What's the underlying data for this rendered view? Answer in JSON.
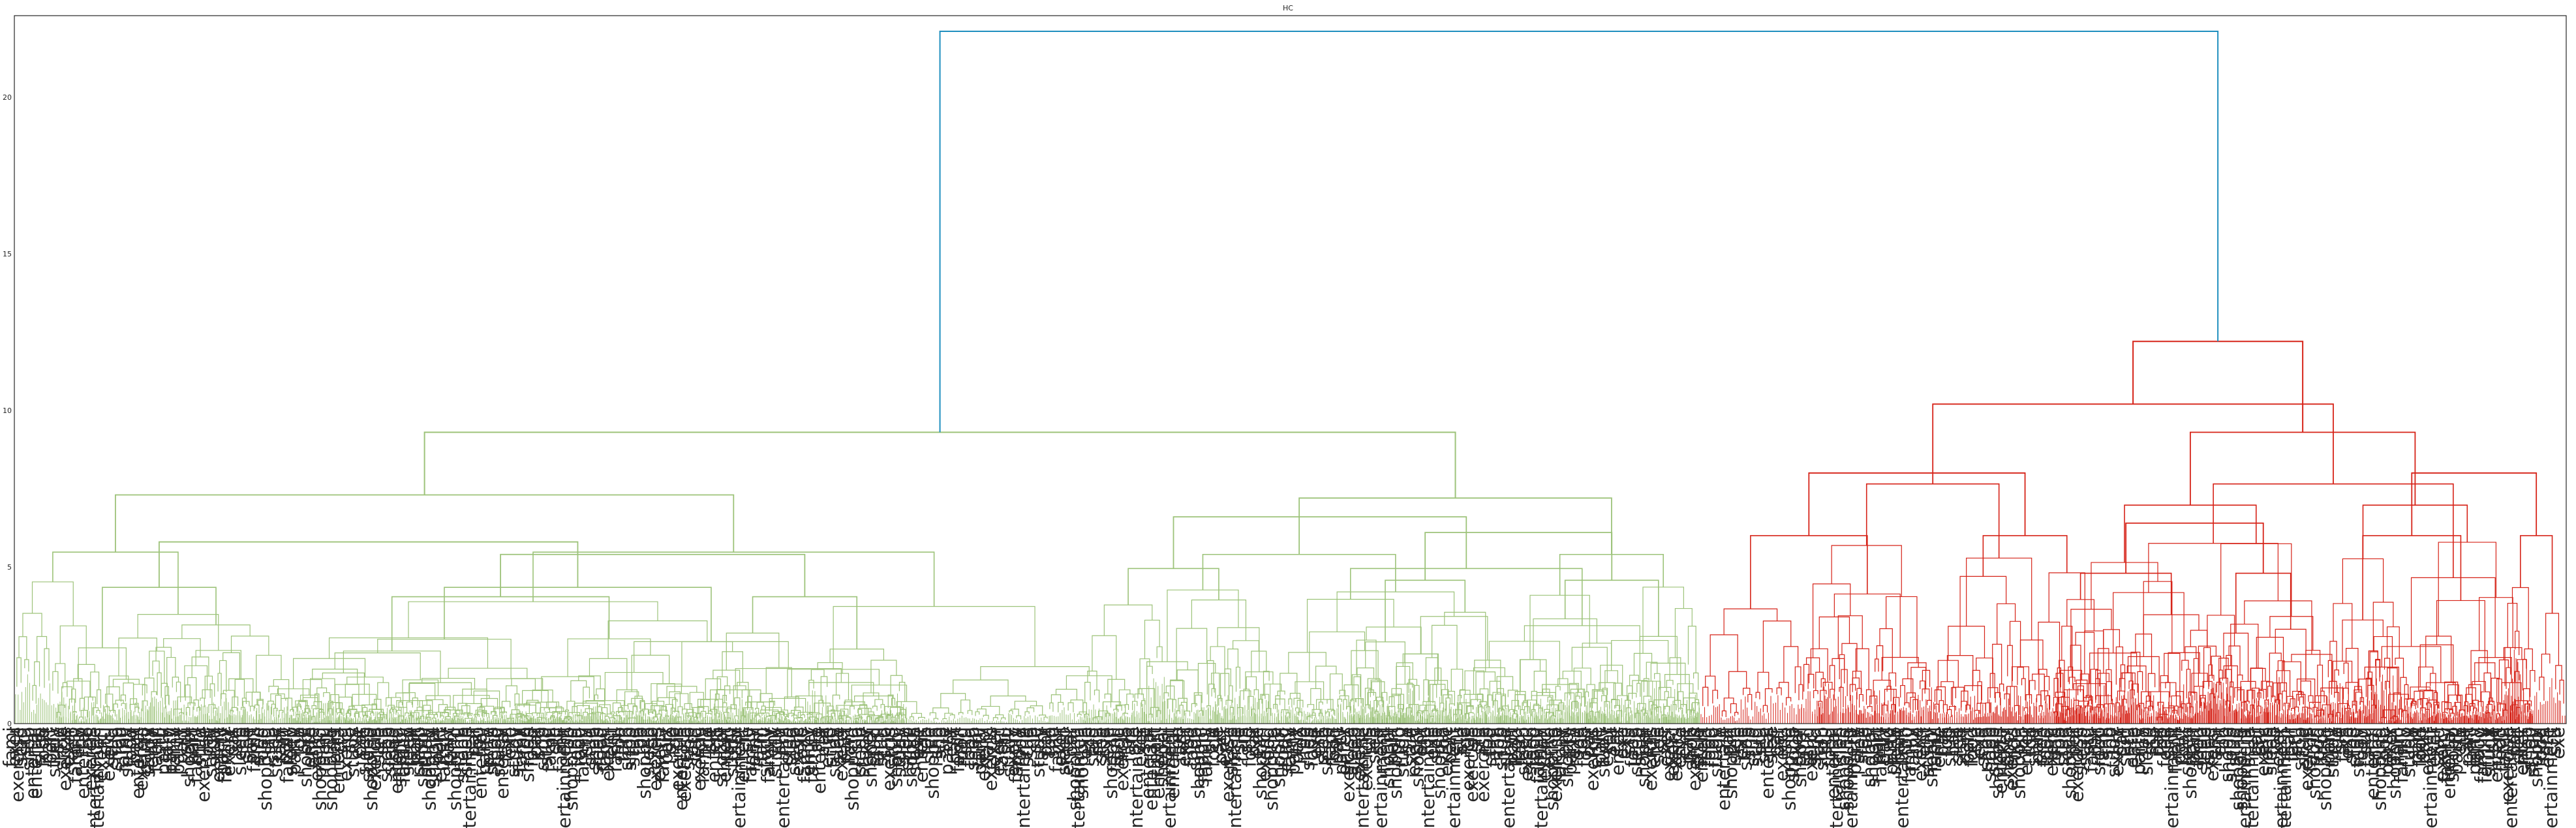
{
  "chart_data": {
    "type": "dendrogram",
    "title": "HC",
    "xlabel": "",
    "ylabel": "",
    "ylim": [
      0,
      22.6
    ],
    "y_ticks": [
      0,
      5,
      10,
      15,
      20
    ],
    "grid": false,
    "colors": {
      "root_link": "#1f8fbf",
      "cluster_green": "#9dc37a",
      "cluster_red": "#d62318",
      "leaf_text": "#262626",
      "axes": "#262626"
    },
    "clusters": [
      {
        "color": "cluster_green",
        "leaf_span": [
          0.0,
          0.6606
        ],
        "merge_height": 9.3,
        "sub_merges": [
          {
            "height": 7.3,
            "children": [
              [
                0.0,
                0.0985
              ],
              [
                0.0985,
                0.4375
              ]
            ]
          },
          {
            "height": 7.2,
            "children": [
              [
                0.4375,
                0.5865
              ],
              [
                0.5865,
                0.6606
              ]
            ]
          },
          {
            "height": 5.8,
            "children": [
              [
                0.016,
                0.11
              ],
              [
                0.11,
                0.35
              ]
            ]
          },
          {
            "height": 5.4,
            "children": [
              [
                0.11,
                0.2665
              ],
              [
                0.2665,
                0.35
              ]
            ]
          },
          {
            "height": 6.6,
            "children": [
              [
                0.418,
                0.4925
              ],
              [
                0.4925,
                0.6606
              ]
            ]
          },
          {
            "height": 6.1,
            "children": [
              [
                0.523,
                0.585
              ],
              [
                0.585,
                0.6606
              ]
            ]
          }
        ]
      },
      {
        "color": "cluster_red",
        "leaf_span": [
          0.6606,
          1.0
        ],
        "merge_height": 12.2,
        "sub_merges": [
          {
            "height": 10.2,
            "children": [
              [
                0.7,
                0.7985
              ],
              [
                0.7985,
                0.987
              ]
            ]
          },
          {
            "height": 9.3,
            "children": [
              [
                0.7985,
                0.906
              ],
              [
                0.906,
                0.987
              ]
            ]
          },
          {
            "height": 8.0,
            "children": [
              [
                0.6606,
                0.752
              ],
              [
                0.752,
                0.818
              ]
            ]
          },
          {
            "height": 6.4,
            "children": [
              [
                0.8,
                0.862
              ],
              [
                0.862,
                0.906
              ]
            ]
          },
          {
            "height": 8.0,
            "children": [
              [
                0.906,
                0.975
              ],
              [
                0.975,
                1.0
              ]
            ]
          }
        ]
      }
    ],
    "root_merge_height": 22.1,
    "leaf_label_vocabulary": [
      "entertainment",
      "shopping",
      "food",
      "exercise",
      "family",
      "party",
      "sleep",
      "study"
    ]
  }
}
